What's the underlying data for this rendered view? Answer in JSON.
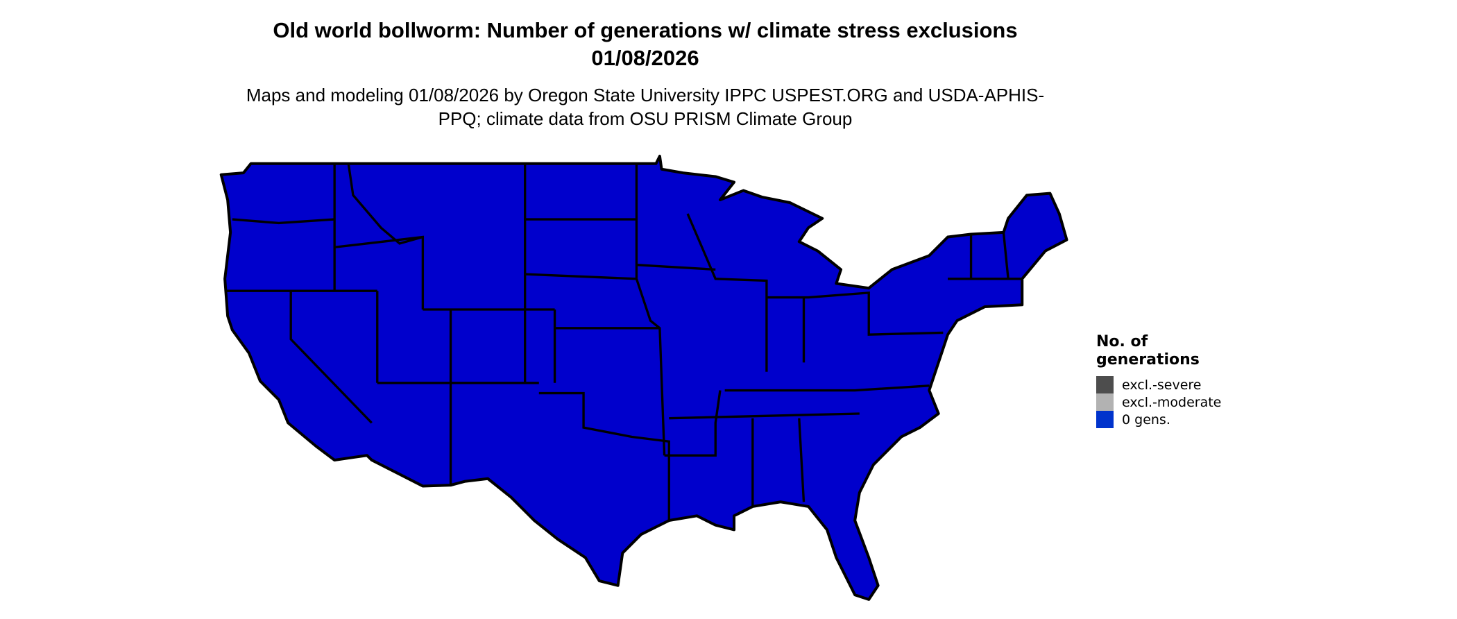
{
  "title": "Old world bollworm: Number of generations w/ climate stress exclusions 01/08/2026",
  "subtitle": "Maps and modeling 01/08/2026 by Oregon State University IPPC USPEST.ORG and USDA-APHIS-PPQ; climate data from OSU PRISM Climate Group",
  "map": {
    "region": "Contiguous United States",
    "fill_color": "#0000CC",
    "border_color": "#000000"
  },
  "legend": {
    "title": "No. of generations",
    "items": [
      {
        "label": "excl.-severe",
        "color": "#4D4D4D"
      },
      {
        "label": "excl.-moderate",
        "color": "#B2B2B2"
      },
      {
        "label": "0 gens.",
        "color": "#0033CC"
      }
    ]
  }
}
